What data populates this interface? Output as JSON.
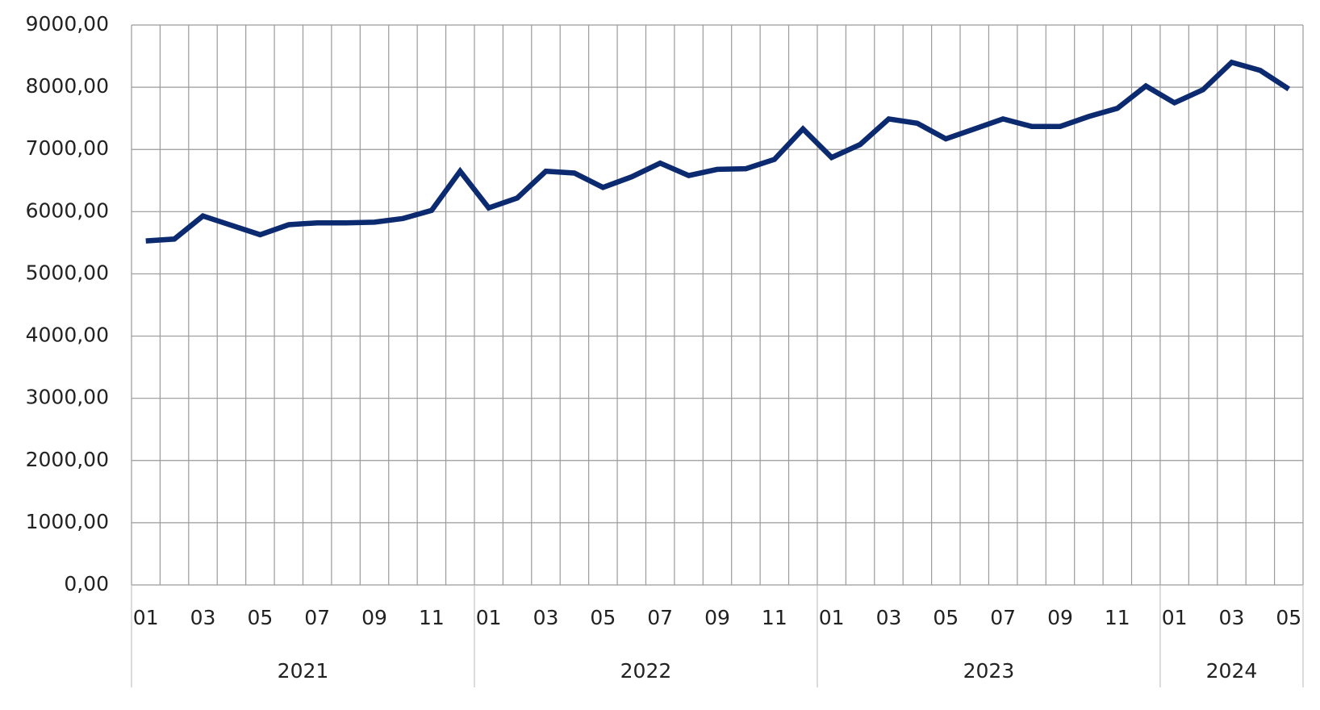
{
  "chart_data": {
    "type": "line",
    "categories": [
      "01",
      null,
      "03",
      null,
      "05",
      null,
      "07",
      null,
      "09",
      null,
      "11",
      null,
      "01",
      null,
      "03",
      null,
      "05",
      null,
      "07",
      null,
      "09",
      null,
      "11",
      null,
      "01",
      null,
      "03",
      null,
      "05",
      null,
      "07",
      null,
      "09",
      null,
      "11",
      null,
      "01",
      null,
      "03",
      null,
      "05"
    ],
    "groups": [
      {
        "name": "2021",
        "size": 12
      },
      {
        "name": "2022",
        "size": 12
      },
      {
        "name": "2023",
        "size": 12
      },
      {
        "name": "2024",
        "size": 5
      }
    ],
    "series": [
      {
        "color": "#0b2a6f",
        "values": [
          5530,
          5560,
          5930,
          5780,
          5630,
          5790,
          5820,
          5820,
          5830,
          5890,
          6020,
          6650,
          6060,
          6220,
          6650,
          6620,
          6390,
          6560,
          6780,
          6580,
          6680,
          6690,
          6840,
          7330,
          6870,
          7080,
          7490,
          7420,
          7170,
          7330,
          7490,
          7370,
          7370,
          7530,
          7660,
          8020,
          7750,
          7960,
          8400,
          8270,
          7970
        ]
      }
    ],
    "ylim": [
      0,
      9000
    ],
    "yticks": [
      {
        "value": 0,
        "label": "0,00"
      },
      {
        "value": 1000,
        "label": "1000,00"
      },
      {
        "value": 2000,
        "label": "2000,00"
      },
      {
        "value": 3000,
        "label": "3000,00"
      },
      {
        "value": 4000,
        "label": "4000,00"
      },
      {
        "value": 5000,
        "label": "5000,00"
      },
      {
        "value": 6000,
        "label": "6000,00"
      },
      {
        "value": 7000,
        "label": "7000,00"
      },
      {
        "value": 8000,
        "label": "8000,00"
      },
      {
        "value": 9000,
        "label": "9000,00"
      }
    ],
    "grid": true
  }
}
